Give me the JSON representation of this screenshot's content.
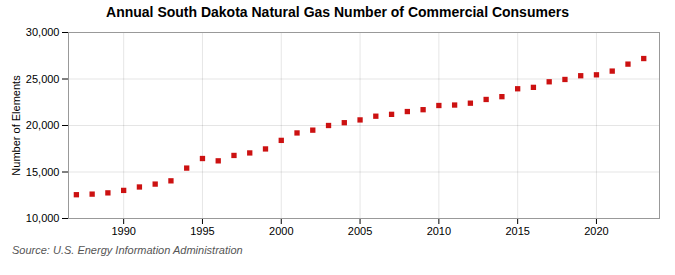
{
  "chart_data": {
    "type": "scatter",
    "title": "Annual South Dakota Natural Gas Number of Commercial Consumers",
    "ylabel": "Number of Elements",
    "source": "Source: U.S. Energy Information Administration",
    "x": [
      1987,
      1988,
      1989,
      1990,
      1991,
      1992,
      1993,
      1994,
      1995,
      1996,
      1997,
      1998,
      1999,
      2000,
      2001,
      2002,
      2003,
      2004,
      2005,
      2006,
      2007,
      2008,
      2009,
      2010,
      2011,
      2012,
      2013,
      2014,
      2015,
      2016,
      2017,
      2018,
      2019,
      2020,
      2021,
      2022,
      2023
    ],
    "values": [
      12557,
      12621,
      12756,
      13021,
      13389,
      13700,
      14050,
      15420,
      16450,
      16200,
      16780,
      17050,
      17480,
      18400,
      19200,
      19500,
      20000,
      20300,
      20600,
      21000,
      21200,
      21500,
      21700,
      22150,
      22200,
      22400,
      22800,
      23100,
      23950,
      24100,
      24700,
      24950,
      25350,
      25450,
      25850,
      26600,
      27200
    ],
    "color": "#cc1111",
    "marker": "square",
    "xlim": [
      1986.5,
      2024
    ],
    "xticks": [
      1990,
      1995,
      2000,
      2005,
      2010,
      2015,
      2020
    ],
    "ylim": [
      10000,
      30000
    ],
    "yticks": [
      {
        "value": 10000,
        "label": "10,000"
      },
      {
        "value": 15000,
        "label": "15,000"
      },
      {
        "value": 20000,
        "label": "20,000"
      },
      {
        "value": 25000,
        "label": "25,000"
      },
      {
        "value": 30000,
        "label": "30,000"
      }
    ],
    "grid": true
  }
}
